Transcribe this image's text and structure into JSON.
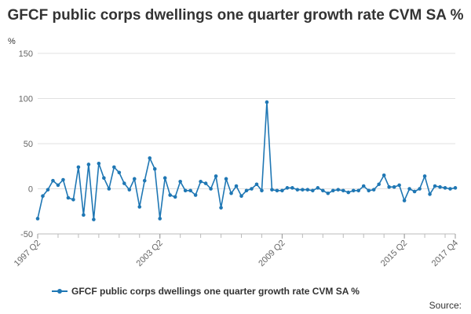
{
  "chart_data": {
    "type": "line",
    "title": "GFCF public corps dwellings one quarter growth rate CVM SA %",
    "ylabel": "%",
    "xlabel": "",
    "ylim": [
      -50,
      150
    ],
    "yticks": [
      -50,
      0,
      50,
      100,
      150
    ],
    "grid": true,
    "legend_position": "bottom",
    "xticklabels": [
      {
        "index": 0,
        "label": "1997 Q2"
      },
      {
        "index": 24,
        "label": "2003 Q2"
      },
      {
        "index": 48,
        "label": "2009 Q2"
      },
      {
        "index": 72,
        "label": "2015 Q2"
      },
      {
        "index": 82,
        "label": "2017 Q4"
      }
    ],
    "color": "#1f77b4",
    "series": [
      {
        "name": "GFCF public corps dwellings one quarter growth rate CVM SA %",
        "values": [
          -33,
          -8,
          -1,
          9,
          4,
          10,
          -10,
          -12,
          24,
          -29,
          27,
          -34,
          28,
          12,
          0,
          24,
          18,
          6,
          -1,
          11,
          -20,
          9,
          34,
          22,
          -33,
          12,
          -7,
          -9,
          8,
          -2,
          -2,
          -7,
          8,
          6,
          0,
          14,
          -21,
          11,
          -5,
          3,
          -8,
          -2,
          0,
          5,
          -2,
          96,
          -1,
          -2,
          -2,
          1,
          1,
          -1,
          -1,
          -1,
          -2,
          1,
          -2,
          -5,
          -2,
          -1,
          -2,
          -4,
          -2,
          -2,
          3,
          -2,
          -1,
          5,
          15,
          2,
          2,
          4,
          -13,
          0,
          -3,
          0,
          14,
          -6,
          3,
          2,
          1,
          0,
          1
        ]
      }
    ]
  },
  "footer": {
    "source_label": "Source:"
  }
}
